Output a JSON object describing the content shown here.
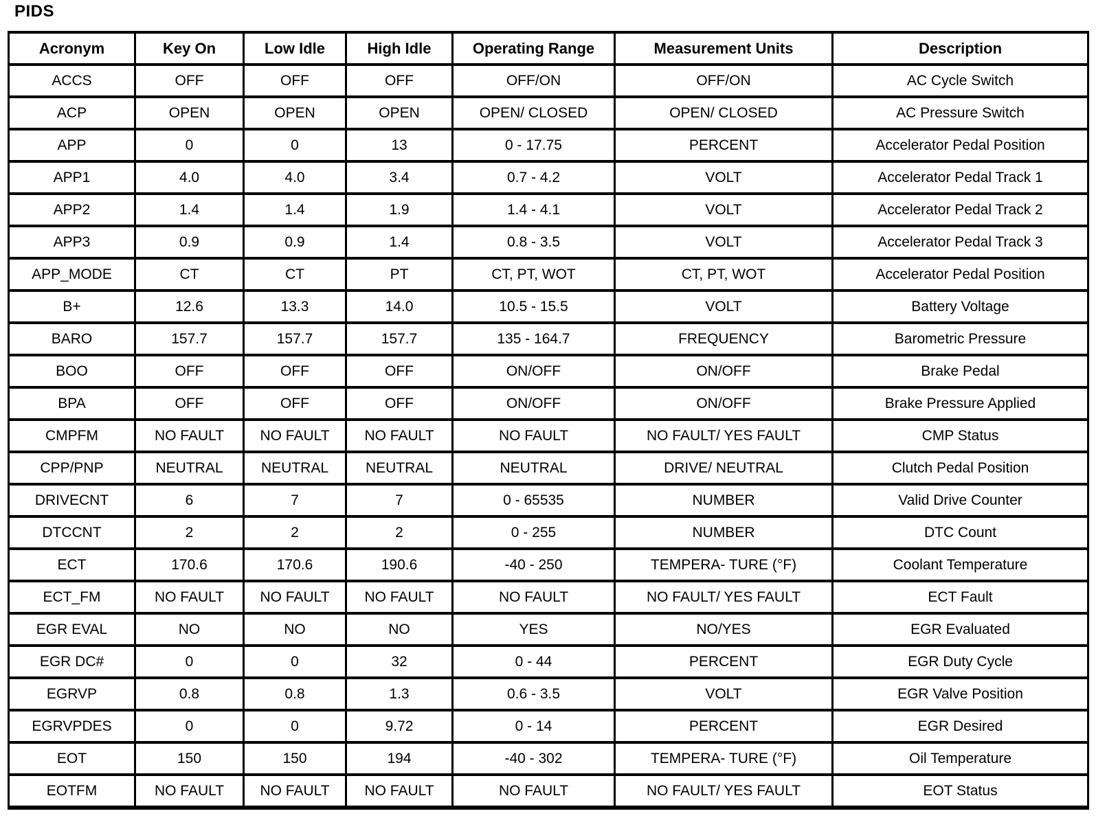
{
  "title": "PIDS",
  "colors": {
    "text": "#000000",
    "border": "#000000",
    "background": "#ffffff"
  },
  "table": {
    "columns": [
      "Acronym",
      "Key On",
      "Low Idle",
      "High Idle",
      "Operating Range",
      "Measurement Units",
      "Description"
    ],
    "rows": [
      [
        "ACCS",
        "OFF",
        "OFF",
        "OFF",
        "OFF/ON",
        "OFF/ON",
        "AC Cycle Switch"
      ],
      [
        "ACP",
        "OPEN",
        "OPEN",
        "OPEN",
        "OPEN/ CLOSED",
        "OPEN/ CLOSED",
        "AC Pressure Switch"
      ],
      [
        "APP",
        "0",
        "0",
        "13",
        "0 - 17.75",
        "PERCENT",
        "Accelerator Pedal Position"
      ],
      [
        "APP1",
        "4.0",
        "4.0",
        "3.4",
        "0.7 - 4.2",
        "VOLT",
        "Accelerator Pedal Track 1"
      ],
      [
        "APP2",
        "1.4",
        "1.4",
        "1.9",
        "1.4 - 4.1",
        "VOLT",
        "Accelerator Pedal Track 2"
      ],
      [
        "APP3",
        "0.9",
        "0.9",
        "1.4",
        "0.8 - 3.5",
        "VOLT",
        "Accelerator Pedal Track 3"
      ],
      [
        "APP_MODE",
        "CT",
        "CT",
        "PT",
        "CT, PT, WOT",
        "CT, PT, WOT",
        "Accelerator Pedal Position"
      ],
      [
        "B+",
        "12.6",
        "13.3",
        "14.0",
        "10.5 - 15.5",
        "VOLT",
        "Battery Voltage"
      ],
      [
        "BARO",
        "157.7",
        "157.7",
        "157.7",
        "135 - 164.7",
        "FREQUENCY",
        "Barometric Pressure"
      ],
      [
        "BOO",
        "OFF",
        "OFF",
        "OFF",
        "ON/OFF",
        "ON/OFF",
        "Brake Pedal"
      ],
      [
        "BPA",
        "OFF",
        "OFF",
        "OFF",
        "ON/OFF",
        "ON/OFF",
        "Brake Pressure Applied"
      ],
      [
        "CMPFM",
        "NO FAULT",
        "NO FAULT",
        "NO FAULT",
        "NO FAULT",
        "NO FAULT/ YES FAULT",
        "CMP Status"
      ],
      [
        "CPP/PNP",
        "NEUTRAL",
        "NEUTRAL",
        "NEUTRAL",
        "NEUTRAL",
        "DRIVE/ NEUTRAL",
        "Clutch Pedal Position"
      ],
      [
        "DRIVECNT",
        "6",
        "7",
        "7",
        "0 - 65535",
        "NUMBER",
        "Valid Drive Counter"
      ],
      [
        "DTCCNT",
        "2",
        "2",
        "2",
        "0 - 255",
        "NUMBER",
        "DTC Count"
      ],
      [
        "ECT",
        "170.6",
        "170.6",
        "190.6",
        "-40 - 250",
        "TEMPERA- TURE (°F)",
        "Coolant Temperature"
      ],
      [
        "ECT_FM",
        "NO FAULT",
        "NO FAULT",
        "NO FAULT",
        "NO FAULT",
        "NO FAULT/ YES FAULT",
        "ECT Fault"
      ],
      [
        "EGR EVAL",
        "NO",
        "NO",
        "NO",
        "YES",
        "NO/YES",
        "EGR Evaluated"
      ],
      [
        "EGR DC#",
        "0",
        "0",
        "32",
        "0 - 44",
        "PERCENT",
        "EGR Duty Cycle"
      ],
      [
        "EGRVP",
        "0.8",
        "0.8",
        "1.3",
        "0.6 - 3.5",
        "VOLT",
        "EGR Valve Position"
      ],
      [
        "EGRVPDES",
        "0",
        "0",
        "9.72",
        "0 - 14",
        "PERCENT",
        "EGR Desired"
      ],
      [
        "EOT",
        "150",
        "150",
        "194",
        "-40 - 302",
        "TEMPERA- TURE (°F)",
        "Oil Temperature"
      ],
      [
        "EOTFM",
        "NO FAULT",
        "NO FAULT",
        "NO FAULT",
        "NO FAULT",
        "NO FAULT/ YES FAULT",
        "EOT Status"
      ]
    ]
  }
}
